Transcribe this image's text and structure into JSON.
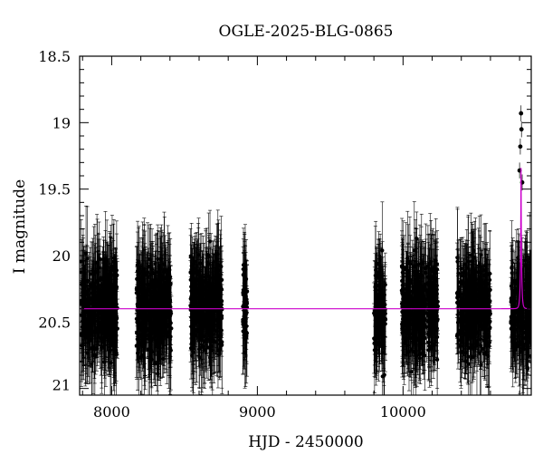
{
  "chart_data": {
    "type": "scatter",
    "title": "OGLE-2025-BLG-0865",
    "xlabel": "HJD - 2450000",
    "ylabel": "I magnitude",
    "xlim": [
      7780,
      10880
    ],
    "ylim": [
      21.05,
      18.5
    ],
    "y_inverted": true,
    "x_ticks": [
      8000,
      9000,
      10000
    ],
    "x_tick_labels": [
      "8000",
      "9000",
      "10000"
    ],
    "y_ticks": [
      18.5,
      19,
      19.5,
      20,
      20.5,
      21
    ],
    "y_tick_labels": [
      "18.5",
      "19",
      "19.5",
      "20",
      "20.5",
      "21"
    ],
    "grid": false,
    "legend": "none",
    "colors": {
      "points": "#000000",
      "model": "#cc00cc"
    },
    "baseline_mag": 20.4,
    "data_seasons": [
      {
        "x_start": 7790,
        "x_end": 8040,
        "mean_mag": 20.4
      },
      {
        "x_start": 8170,
        "x_end": 8410,
        "mean_mag": 20.4
      },
      {
        "x_start": 8540,
        "x_end": 8760,
        "mean_mag": 20.4
      },
      {
        "x_start": 8900,
        "x_end": 8930,
        "mean_mag": 20.4
      },
      {
        "x_start": 9800,
        "x_end": 9880,
        "mean_mag": 20.4
      },
      {
        "x_start": 9990,
        "x_end": 10240,
        "mean_mag": 20.4
      },
      {
        "x_start": 10370,
        "x_end": 10600,
        "mean_mag": 20.4
      },
      {
        "x_start": 10740,
        "x_end": 10880,
        "mean_mag": 20.4
      }
    ],
    "peak_points": [
      {
        "x": 10800,
        "y": 19.36
      },
      {
        "x": 10805,
        "y": 19.18
      },
      {
        "x": 10810,
        "y": 18.93
      },
      {
        "x": 10813,
        "y": 19.05
      },
      {
        "x": 10818,
        "y": 19.45
      }
    ],
    "model": {
      "type": "single-lens",
      "t0": 10810,
      "u0": 0.1,
      "tE": 8,
      "baseline_mag": 20.4,
      "peak_mag": 19.34
    }
  }
}
